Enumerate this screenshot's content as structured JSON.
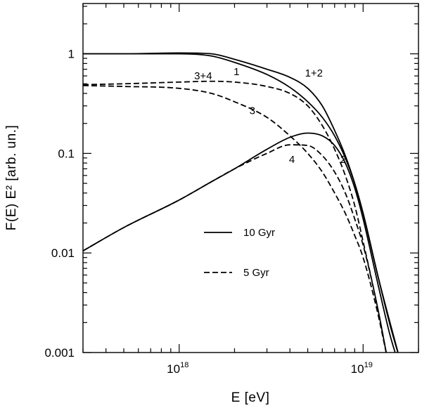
{
  "chart_data": {
    "type": "line",
    "scale": {
      "x": "log",
      "y": "log"
    },
    "xlim": [
      3e+17,
      2e+19
    ],
    "ylim": [
      0.001,
      3.2
    ],
    "xlabel": "E [eV]",
    "ylabel": "F(E) E² [arb. un.]",
    "x_ticks": [
      {
        "value": 1e+18,
        "base": "10",
        "exp": "18"
      },
      {
        "value": 1e+19,
        "base": "10",
        "exp": "19"
      }
    ],
    "y_ticks": [
      {
        "value": 1,
        "label": "1"
      },
      {
        "value": 0.1,
        "label": "0.1"
      },
      {
        "value": 0.01,
        "label": "0.01"
      },
      {
        "value": 0.001,
        "label": "0.001"
      }
    ],
    "legend": [
      {
        "label": "10 Gyr",
        "style": "solid"
      },
      {
        "label": "5 Gyr",
        "style": "dashed"
      }
    ],
    "series": [
      {
        "name": "1+2",
        "style": "solid",
        "x": [
          3e+17,
          5e+17,
          1e+18,
          1.5e+18,
          2e+18,
          3e+18,
          4e+18,
          5e+18,
          6e+18,
          7e+18,
          8e+18,
          9e+18,
          1e+19,
          1.2e+19,
          1.4e+19,
          1.6e+19
        ],
        "y": [
          1.0,
          1.0,
          1.02,
          1.0,
          0.88,
          0.7,
          0.58,
          0.45,
          0.3,
          0.17,
          0.095,
          0.05,
          0.025,
          0.006,
          0.002,
          0.0008
        ]
      },
      {
        "name": "1",
        "style": "solid",
        "x": [
          3e+17,
          5e+17,
          1e+18,
          1.5e+18,
          2e+18,
          3e+18,
          4e+18,
          5e+18,
          6e+18,
          7e+18,
          8e+18,
          9e+18,
          1e+19,
          1.2e+19,
          1.4e+19,
          1.6e+19
        ],
        "y": [
          1.0,
          1.0,
          1.0,
          0.95,
          0.82,
          0.62,
          0.46,
          0.33,
          0.23,
          0.15,
          0.09,
          0.05,
          0.025,
          0.006,
          0.0019,
          0.0008
        ]
      },
      {
        "name": "2",
        "style": "solid",
        "x": [
          3e+17,
          5e+17,
          1e+18,
          1.5e+18,
          2e+18,
          3e+18,
          4e+18,
          5e+18,
          6e+18,
          7e+18,
          8e+18,
          9e+18,
          1e+19,
          1.2e+19,
          1.4e+19,
          1.55e+19
        ],
        "y": [
          0.0105,
          0.018,
          0.034,
          0.052,
          0.07,
          0.11,
          0.145,
          0.16,
          0.15,
          0.12,
          0.08,
          0.045,
          0.022,
          0.005,
          0.0015,
          0.0008
        ]
      },
      {
        "name": "3+4",
        "style": "dashed",
        "x": [
          3e+17,
          5e+17,
          1e+18,
          1.5e+18,
          2e+18,
          3e+18,
          4e+18,
          5e+18,
          6e+18,
          7e+18,
          8e+18,
          9e+18,
          1e+19,
          1.2e+19,
          1.35e+19
        ],
        "y": [
          0.49,
          0.5,
          0.52,
          0.53,
          0.52,
          0.47,
          0.4,
          0.3,
          0.19,
          0.11,
          0.06,
          0.03,
          0.013,
          0.0028,
          0.0009
        ]
      },
      {
        "name": "3",
        "style": "dashed",
        "x": [
          3e+17,
          5e+17,
          1e+18,
          1.5e+18,
          2e+18,
          3e+18,
          4e+18,
          5e+18,
          6e+18,
          7e+18,
          8e+18,
          9e+18,
          1e+19,
          1.2e+19,
          1.35e+19
        ],
        "y": [
          0.48,
          0.47,
          0.45,
          0.4,
          0.33,
          0.23,
          0.15,
          0.1,
          0.065,
          0.04,
          0.025,
          0.015,
          0.009,
          0.0025,
          0.0009
        ]
      },
      {
        "name": "4",
        "style": "dashed",
        "x": [
          3e+17,
          5e+17,
          1e+18,
          1.5e+18,
          2e+18,
          3e+18,
          4e+18,
          5e+18,
          6e+18,
          7e+18,
          8e+18,
          9e+18,
          1e+19,
          1.2e+19,
          1.35e+19
        ],
        "y": [
          0.0105,
          0.018,
          0.034,
          0.052,
          0.07,
          0.1,
          0.122,
          0.12,
          0.095,
          0.065,
          0.04,
          0.022,
          0.012,
          0.0028,
          0.0009
        ]
      }
    ],
    "annotations": [
      {
        "text": "1+2",
        "x": 5.4e+18,
        "y": 0.64
      },
      {
        "text": "1",
        "x": 2.05e+18,
        "y": 0.66
      },
      {
        "text": "3+4",
        "x": 1.35e+18,
        "y": 0.6
      },
      {
        "text": "3",
        "x": 2.5e+18,
        "y": 0.27
      },
      {
        "text": "4",
        "x": 4.1e+18,
        "y": 0.087
      },
      {
        "text": "2",
        "x": 7.8e+18,
        "y": 0.087
      }
    ]
  }
}
